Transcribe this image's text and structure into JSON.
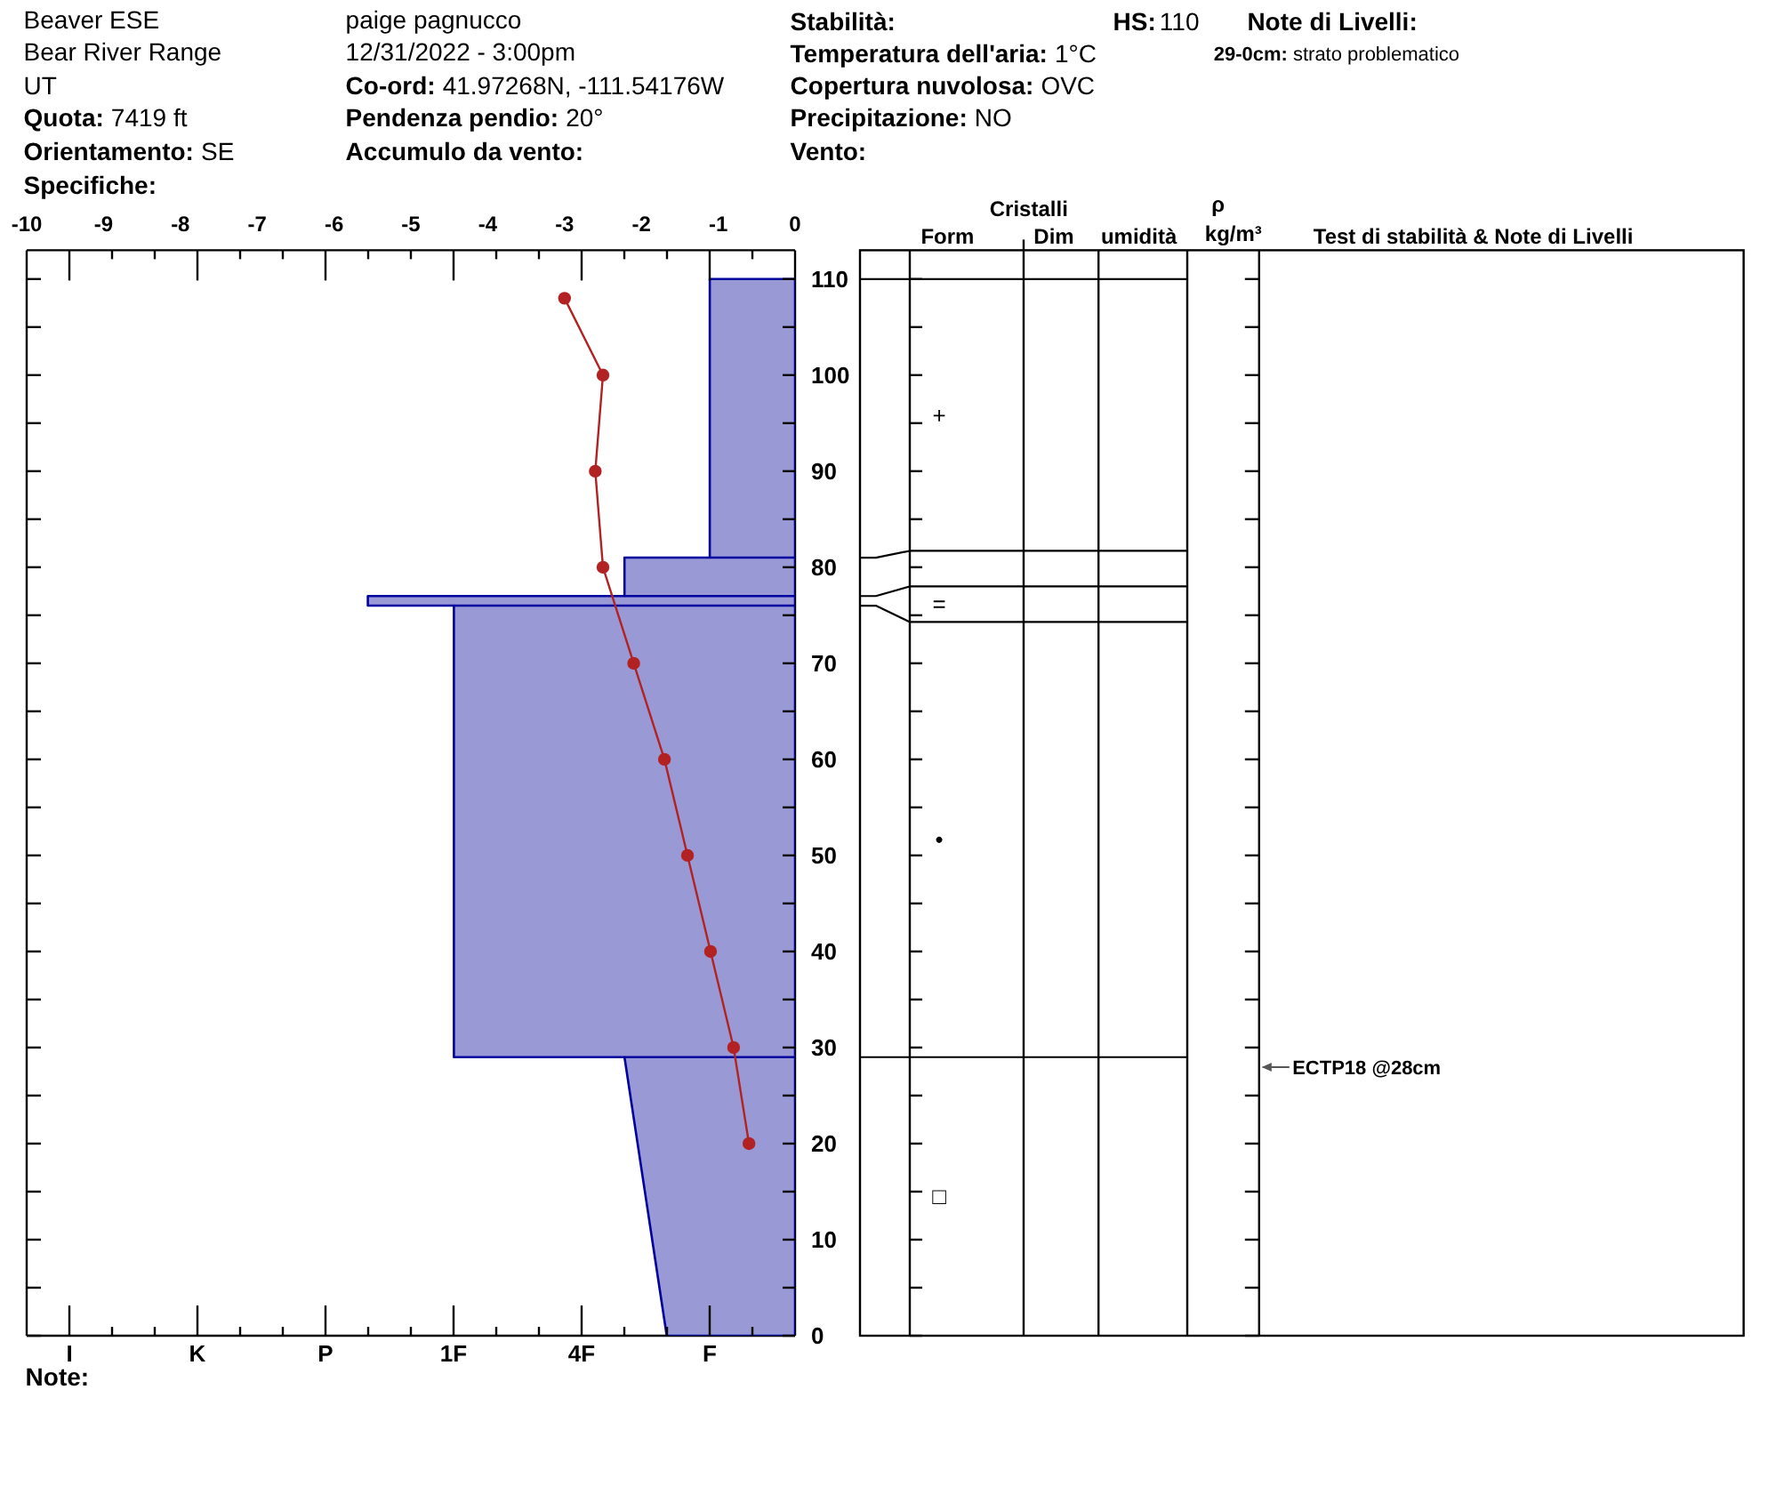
{
  "chart_data": [
    {
      "type": "other",
      "annotations": [
        "Beaver ESE",
        "Bear River Range",
        "UT",
        "Quota:",
        "7419 ft",
        "Orientamento:",
        "SE",
        "Specifiche:",
        "paige pagnucco",
        "12/31/2022 - 3:00pm",
        "Co-ord:",
        "41.97268N, -111.54176W",
        "Pendenza pendio:",
        "20°",
        "Accumulo da vento:",
        "Stabilità:",
        "Temperatura dell'aria:",
        "1°C",
        "Copertura nuvolosa:",
        "OVC",
        "Precipitazione:",
        "NO",
        "Vento:",
        "HS:",
        "110",
        "Note di Livelli:",
        "29-0cm:",
        "strato problematico"
      ]
    },
    {
      "type": "line",
      "categories": [
        "I",
        null,
        null,
        "K",
        null,
        null,
        "P",
        null,
        null,
        "1F",
        null,
        null,
        "4F",
        null,
        null,
        "F",
        null
      ],
      "x2lim": [
        -10,
        0
      ],
      "x2ticks": [
        -10,
        -9,
        -8,
        -7,
        -6,
        -5,
        -4,
        -3,
        -2,
        -1,
        0
      ],
      "ylim": [
        0,
        113
      ],
      "yticks": [
        0,
        {
          "value": 5,
          "label": null
        },
        10,
        {
          "value": 15,
          "label": null
        },
        20,
        {
          "value": 25,
          "label": null
        },
        30,
        {
          "value": 35,
          "label": null
        },
        40,
        {
          "value": 45,
          "label": null
        },
        50,
        {
          "value": 55,
          "label": null
        },
        60,
        {
          "value": 65,
          "label": null
        },
        70,
        {
          "value": 75,
          "label": null
        },
        80,
        {
          "value": 85,
          "label": null
        },
        90,
        {
          "value": 95,
          "label": null
        },
        100,
        {
          "value": 105,
          "label": null
        },
        110
      ],
      "series": [
        {
          "type": "area",
          "axis": "x2",
          "color": "#9999d6",
          "x": [
            0,
            -1.11,
            -1.11,
            -2.22,
            -2.22,
            -5.56,
            -5.56,
            -4.44,
            -4.44,
            -2.22,
            -1.67,
            0
          ],
          "values": [
            110,
            110,
            81,
            81,
            77,
            77,
            76,
            76,
            29,
            29,
            0,
            0
          ]
        },
        {
          "type": "line",
          "axis": "x2",
          "color": "#0000a0",
          "x": [
            -1.11,
            0
          ],
          "values": [
            81,
            81
          ]
        },
        {
          "type": "line",
          "axis": "x2",
          "color": "#0000a0",
          "x": [
            -2.22,
            0
          ],
          "values": [
            77,
            77
          ]
        },
        {
          "type": "line",
          "axis": "x2",
          "color": "#0000a0",
          "x": [
            -4.44,
            0
          ],
          "values": [
            76,
            76
          ]
        },
        {
          "type": "line",
          "axis": "x2",
          "color": "#0000a0",
          "x": [
            -2.22,
            0
          ],
          "values": [
            29,
            29
          ]
        },
        {
          "type": "line",
          "axis": "x2",
          "color": "#b22222",
          "marker": "circle",
          "x": [
            -3,
            -2.5,
            -2.6,
            -2.5,
            -2.1,
            -1.7,
            -1.4,
            -1.1,
            -0.8,
            -0.6
          ],
          "values": [
            108,
            100,
            90,
            80,
            70,
            60,
            50,
            40,
            30,
            20
          ]
        }
      ],
      "annotations": [
        "Note:",
        "Cristalli",
        "Form",
        "Dim",
        "umidità",
        "ρ",
        "kg/m³",
        "Test di stabilità & Note di Livelli",
        "+",
        "=",
        "•",
        "□",
        "ECTP18 @28cm"
      ]
    }
  ]
}
